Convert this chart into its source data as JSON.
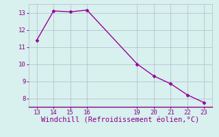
{
  "x": [
    13,
    14,
    15,
    16,
    19,
    20,
    21,
    22,
    23
  ],
  "y": [
    11.4,
    13.1,
    13.05,
    13.15,
    10.0,
    9.3,
    8.85,
    8.2,
    7.75
  ],
  "line_color": "#990099",
  "marker": "D",
  "marker_size": 2.5,
  "linewidth": 1.0,
  "xlabel": "Windchill (Refroidissement éolien,°C)",
  "xlabel_color": "#880088",
  "xlim": [
    12.5,
    23.5
  ],
  "ylim": [
    7.5,
    13.5
  ],
  "xticks": [
    13,
    14,
    15,
    16,
    19,
    20,
    21,
    22,
    23
  ],
  "yticks": [
    8,
    9,
    10,
    11,
    12,
    13
  ],
  "background_color": "#d8f0ee",
  "grid_color": "#b0b8cc",
  "tick_color": "#880088",
  "tick_labelsize": 6.5,
  "xlabel_fontsize": 7.5
}
